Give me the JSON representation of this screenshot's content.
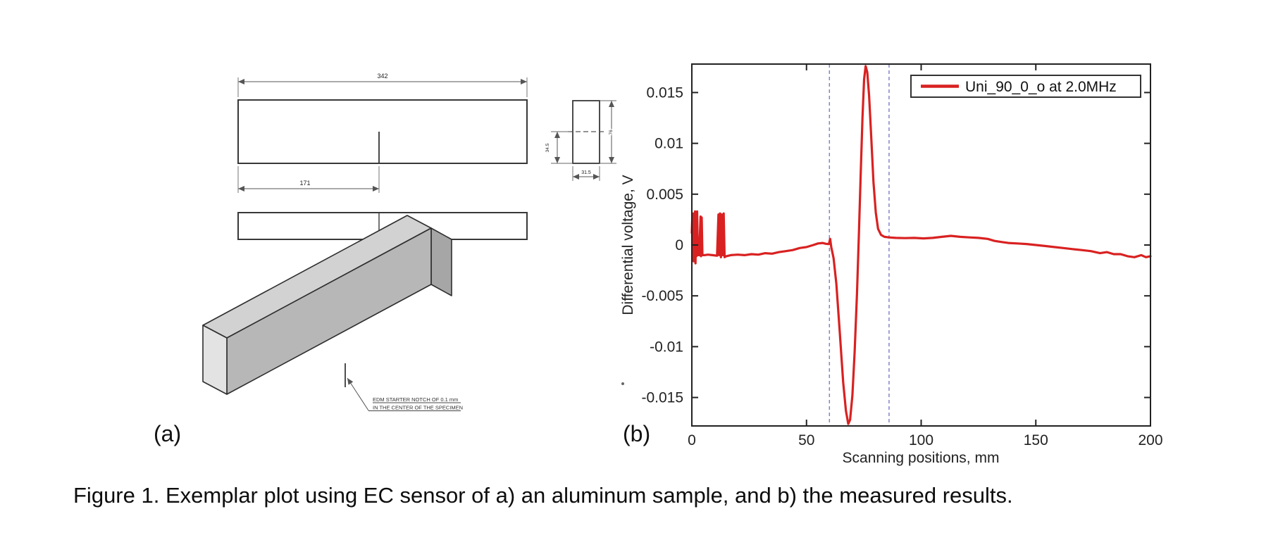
{
  "panel_a": {
    "label": "(a)",
    "dims": {
      "total_length": "342",
      "notch_position": "171",
      "section_half_height": "34.5",
      "section_height": "76",
      "section_width": "31.5"
    },
    "note_line1": "EDM STARTER NOTCH OF 0.1 mm",
    "note_line2": "IN THE CENTER OF THE SPECIMEN"
  },
  "panel_b": {
    "label": "(b)"
  },
  "caption": "Figure 1. Exemplar plot using EC sensor of a) an aluminum sample, and b) the measured results.",
  "chart_data": {
    "type": "line",
    "xlabel": "Scanning positions, mm",
    "ylabel": "Differential voltage, V",
    "xlim": [
      0,
      200
    ],
    "ylim": [
      -0.0178,
      0.0178
    ],
    "grid": false,
    "legend_position": "top-right",
    "xticks": [
      {
        "v": 0,
        "label": "0"
      },
      {
        "v": 50,
        "label": "50"
      },
      {
        "v": 100,
        "label": "100"
      },
      {
        "v": 150,
        "label": "150"
      },
      {
        "v": 200,
        "label": "200"
      }
    ],
    "yticks": [
      {
        "v": 0.015,
        "label": "0.015"
      },
      {
        "v": 0.01,
        "label": "0.01"
      },
      {
        "v": 0.005,
        "label": "0.005"
      },
      {
        "v": 0,
        "label": "0"
      },
      {
        "v": -0.005,
        "label": "-0.005"
      },
      {
        "v": -0.01,
        "label": "-0.01"
      },
      {
        "v": -0.015,
        "label": "-0.015"
      }
    ],
    "legend": {
      "label": "Uni_90_0_o at 2.0MHz",
      "color": "#d92121"
    },
    "marker_line_color": "#8085c8",
    "marker_lines_mm": [
      60,
      86
    ],
    "series": [
      {
        "name": "Uni_90_0_o at 2.0MHz",
        "color": "#d92121",
        "points": [
          [
            0,
            0.0012
          ],
          [
            0.2,
            0.0028
          ],
          [
            0.4,
            -0.0012
          ],
          [
            0.6,
            0.0031
          ],
          [
            0.8,
            -0.0016
          ],
          [
            1.0,
            0.0026
          ],
          [
            1.2,
            -0.0009
          ],
          [
            1.4,
            0.0033
          ],
          [
            1.6,
            -0.0018
          ],
          [
            1.8,
            0.0024
          ],
          [
            2.0,
            -0.0011
          ],
          [
            2.3,
            0.0033
          ],
          [
            2.6,
            -0.001
          ],
          [
            3.2,
            -0.001
          ],
          [
            3.8,
            0.0028
          ],
          [
            4.0,
            -0.0011
          ],
          [
            4.3,
            0.0027
          ],
          [
            4.6,
            -0.001
          ],
          [
            5.5,
            -0.001
          ],
          [
            7,
            -0.00095
          ],
          [
            9,
            -0.001
          ],
          [
            11,
            -0.00105
          ],
          [
            11.6,
            0.003
          ],
          [
            11.9,
            -0.001
          ],
          [
            12.3,
            0.0031
          ],
          [
            12.7,
            -0.0012
          ],
          [
            13.1,
            0.003
          ],
          [
            13.5,
            -0.001
          ],
          [
            13.9,
            0.0031
          ],
          [
            14.3,
            -0.0012
          ],
          [
            15,
            -0.0011
          ],
          [
            17,
            -0.001
          ],
          [
            20,
            -0.00095
          ],
          [
            23,
            -0.001
          ],
          [
            26,
            -0.0009
          ],
          [
            29,
            -0.00095
          ],
          [
            32,
            -0.0008
          ],
          [
            35,
            -0.00085
          ],
          [
            38,
            -0.0007
          ],
          [
            41,
            -0.0006
          ],
          [
            44,
            -0.0005
          ],
          [
            47,
            -0.0003
          ],
          [
            50,
            -0.0002
          ],
          [
            53,
            0
          ],
          [
            55,
            0.00015
          ],
          [
            57,
            0.0002
          ],
          [
            58.5,
            0.00012
          ],
          [
            59.8,
            0.0001
          ],
          [
            60.3,
            0.0006
          ],
          [
            60.8,
            -0.0002
          ],
          [
            61.8,
            -0.0013
          ],
          [
            63,
            -0.0038
          ],
          [
            64.5,
            -0.0085
          ],
          [
            66,
            -0.0135
          ],
          [
            67.2,
            -0.0163
          ],
          [
            68.2,
            -0.0176
          ],
          [
            69,
            -0.0172
          ],
          [
            70,
            -0.0148
          ],
          [
            71,
            -0.0105
          ],
          [
            72,
            -0.0048
          ],
          [
            72.8,
            0.0008
          ],
          [
            73.6,
            0.0068
          ],
          [
            74.4,
            0.0125
          ],
          [
            75.1,
            0.0163
          ],
          [
            75.8,
            0.0176
          ],
          [
            76.5,
            0.017
          ],
          [
            77.3,
            0.0147
          ],
          [
            78.2,
            0.0108
          ],
          [
            79.2,
            0.0062
          ],
          [
            80.2,
            0.0032
          ],
          [
            81.2,
            0.0016
          ],
          [
            82.5,
            0.001
          ],
          [
            84,
            0.0008
          ],
          [
            86,
            0.00075
          ],
          [
            89,
            0.0007
          ],
          [
            93,
            0.00068
          ],
          [
            97,
            0.0007
          ],
          [
            101,
            0.00065
          ],
          [
            105,
            0.0007
          ],
          [
            109,
            0.0008
          ],
          [
            113,
            0.0009
          ],
          [
            117,
            0.0008
          ],
          [
            121,
            0.00075
          ],
          [
            125,
            0.0007
          ],
          [
            129,
            0.0006
          ],
          [
            132,
            0.0004
          ],
          [
            135,
            0.0003
          ],
          [
            138,
            0.0002
          ],
          [
            142,
            0.00015
          ],
          [
            146,
            0.0001
          ],
          [
            150,
            0
          ],
          [
            154,
            -0.0001
          ],
          [
            158,
            -0.0002
          ],
          [
            162,
            -0.0003
          ],
          [
            166,
            -0.0004
          ],
          [
            170,
            -0.0005
          ],
          [
            174,
            -0.0006
          ],
          [
            178,
            -0.0008
          ],
          [
            181,
            -0.0007
          ],
          [
            184,
            -0.0009
          ],
          [
            187,
            -0.0009
          ],
          [
            190,
            -0.0011
          ],
          [
            193,
            -0.0012
          ],
          [
            196,
            -0.001
          ],
          [
            198,
            -0.0012
          ],
          [
            200,
            -0.0011
          ]
        ]
      }
    ]
  }
}
